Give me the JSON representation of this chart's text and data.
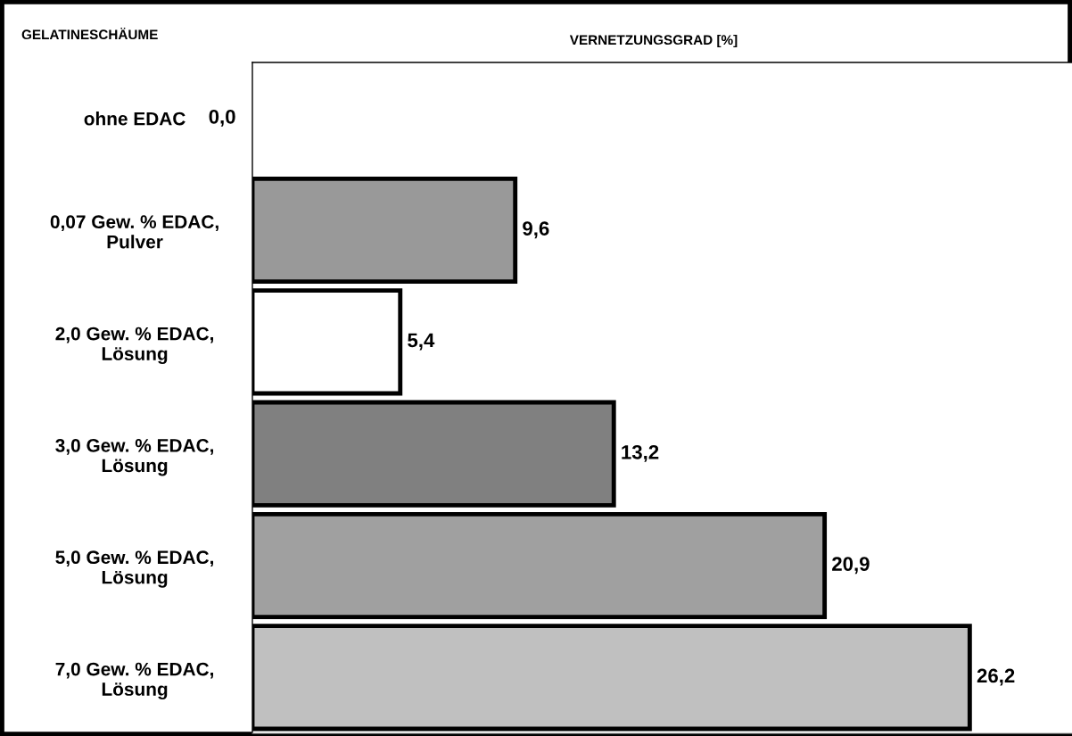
{
  "chart_data": {
    "type": "bar",
    "orientation": "horizontal",
    "title": "VERNETZUNGSGRAD [%]",
    "ylabel": "GELATINESCHÄUME",
    "categories": [
      "ohne EDAC",
      "0,07 Gew. % EDAC,\nPulver",
      "2,0 Gew. % EDAC,\nLösung",
      "3,0 Gew. % EDAC,\nLösung",
      "5,0 Gew. % EDAC,\nLösung",
      "7,0 Gew. % EDAC,\nLösung"
    ],
    "values": [
      0.0,
      9.6,
      5.4,
      13.2,
      20.9,
      26.2
    ],
    "colors": [
      null,
      "#999999",
      "#ffffff",
      "#808080",
      "#a0a0a0",
      "#c0c0c0"
    ],
    "value_labels": [
      "0,0",
      "9,6",
      "5,4",
      "13,2",
      "20,9",
      "26,2"
    ],
    "xlim": [
      0,
      30
    ],
    "tick_labels": "y",
    "grid": false,
    "legend": false
  }
}
